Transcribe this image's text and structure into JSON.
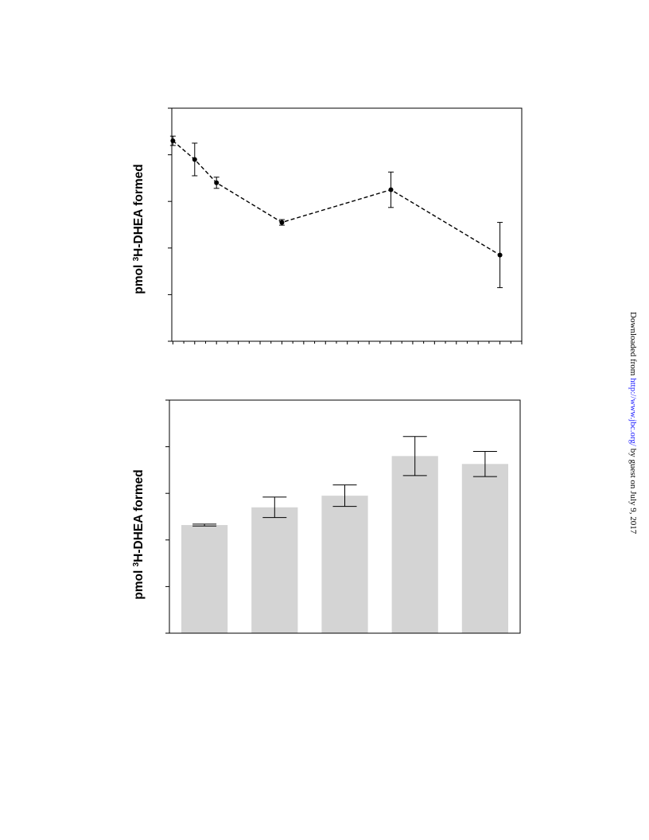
{
  "chart_data": [
    {
      "type": "line",
      "ylabel": {
        "prefix": "pmol ",
        "sup": "3",
        "suffix": "H-DHEA formed"
      },
      "x": [
        0,
        1,
        2,
        5,
        10,
        15
      ],
      "xlim": [
        -0.05,
        16
      ],
      "y": [
        4.3,
        3.9,
        3.4,
        2.55,
        3.25,
        1.85
      ],
      "yerr": [
        0.1,
        0.35,
        0.12,
        0.06,
        0.38,
        0.7
      ],
      "ylim": [
        0,
        5
      ],
      "line_style": "dashed",
      "marker": "filled-circle",
      "y_ticks": [
        0,
        1,
        2,
        3,
        4,
        5
      ],
      "grid": false
    },
    {
      "type": "bar",
      "ylabel": {
        "prefix": "pmol ",
        "sup": "3",
        "suffix": "H-DHEA formed"
      },
      "categories": [
        "",
        "",
        "",
        "",
        ""
      ],
      "values": [
        2.32,
        2.7,
        2.95,
        3.8,
        3.63
      ],
      "yerr": [
        0.02,
        0.22,
        0.23,
        0.42,
        0.27
      ],
      "ylim": [
        0,
        5
      ],
      "y_ticks": [
        0,
        1,
        2,
        3,
        4,
        5
      ],
      "bar_color": "#d4d4d4",
      "grid": false
    }
  ],
  "watermark": {
    "prefix": "Downloaded from ",
    "link": "http://www.jbc.org/",
    "suffix": " by guest on July 9, 2017"
  }
}
